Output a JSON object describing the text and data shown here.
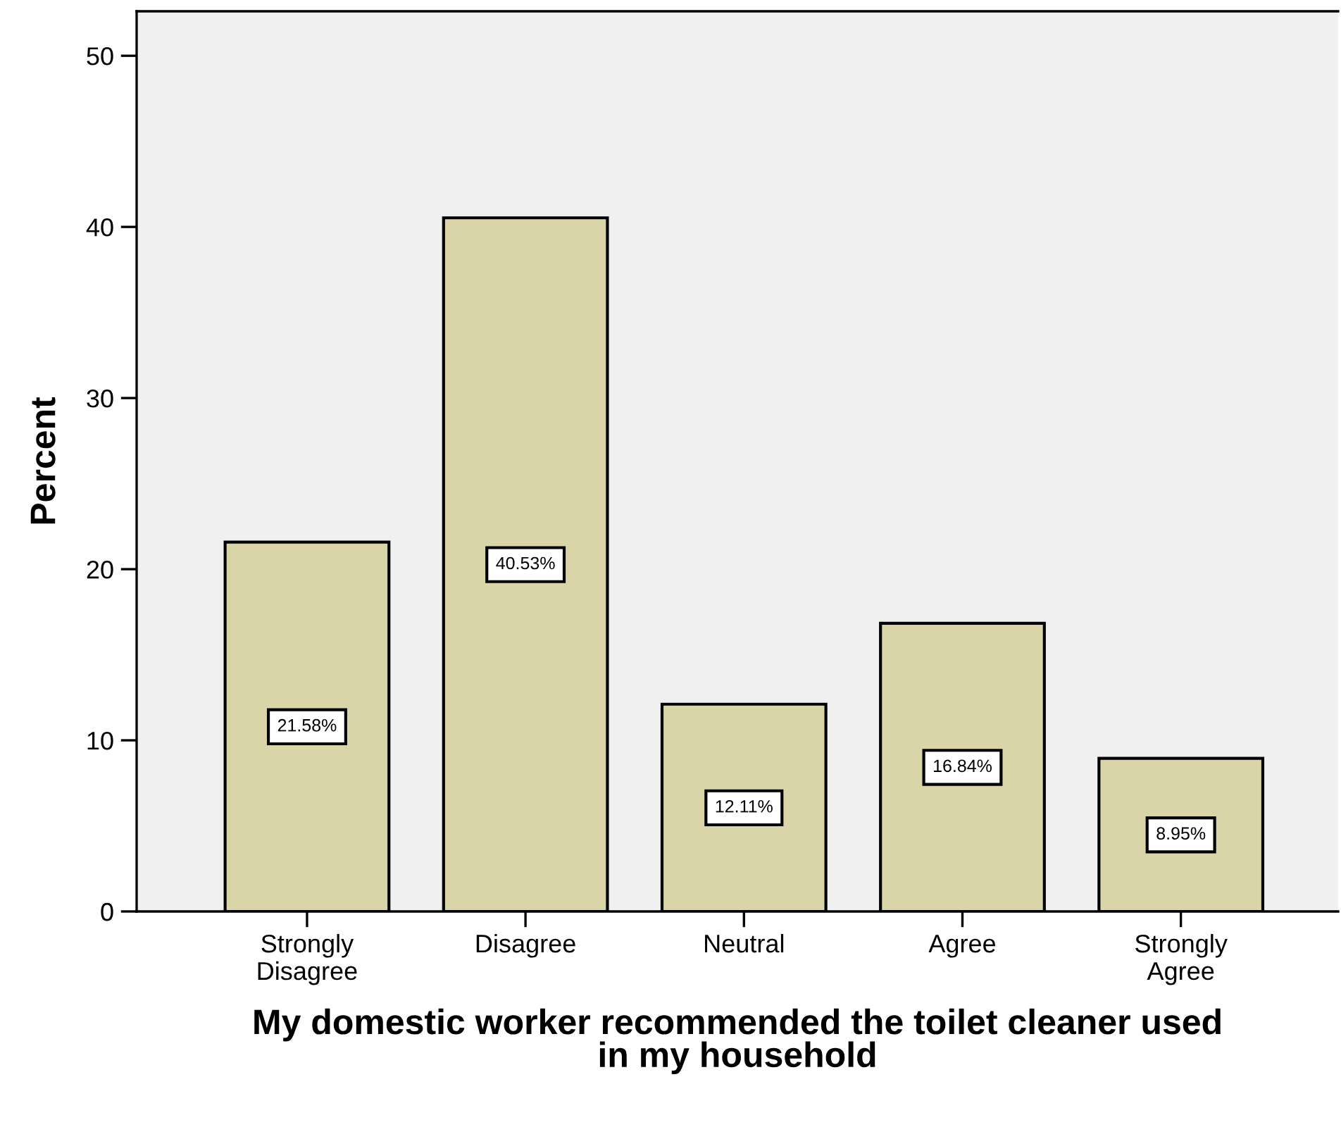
{
  "chart_data": {
    "type": "bar",
    "xlabel": "My domestic worker recommended the toilet cleaner used\nin my household",
    "ylabel": "Percent",
    "categories": [
      "Strongly\nDisagree",
      "Disagree",
      "Neutral",
      "Agree",
      "Strongly\nAgree"
    ],
    "values": [
      21.58,
      40.53,
      12.11,
      16.84,
      8.95
    ],
    "value_labels": [
      "21.58%",
      "40.53%",
      "12.11%",
      "16.84%",
      "8.95%"
    ],
    "color": "#d9d5a8",
    "ylim": [
      0,
      52.6
    ],
    "yticks": [
      0,
      10,
      20,
      30,
      40,
      50
    ],
    "grid": false
  }
}
